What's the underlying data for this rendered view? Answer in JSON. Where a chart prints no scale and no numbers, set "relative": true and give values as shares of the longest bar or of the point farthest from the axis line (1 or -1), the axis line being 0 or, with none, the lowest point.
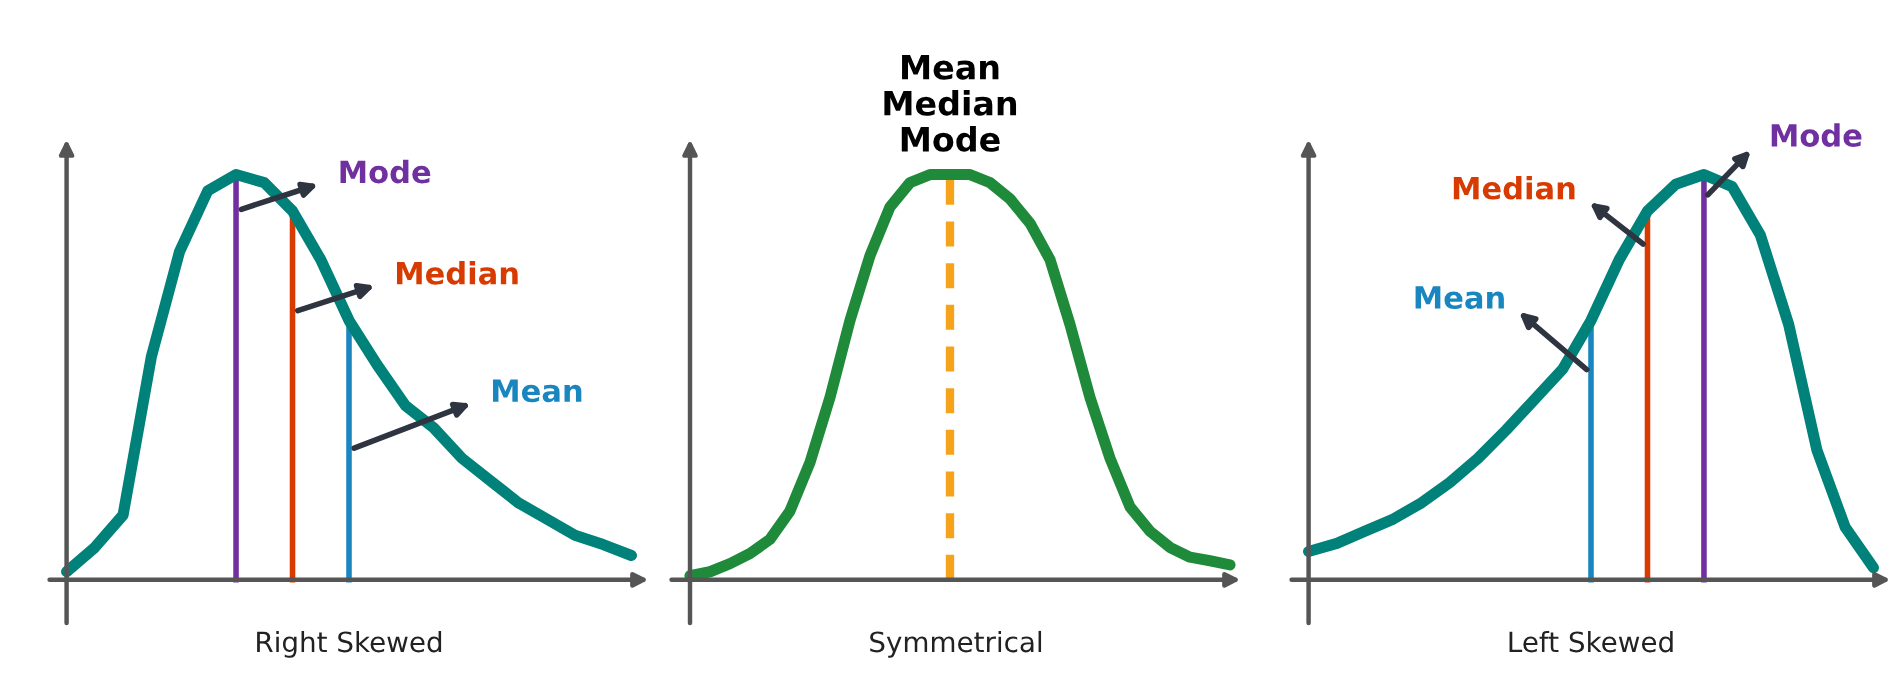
{
  "chart_data": [
    {
      "type": "line",
      "relative": true,
      "xlabel": "Right Skewed",
      "categories": [
        null,
        null,
        null,
        null,
        null,
        null,
        null,
        null,
        null,
        null,
        null,
        null,
        null,
        null,
        null,
        null,
        null,
        null,
        null,
        null,
        null
      ],
      "series": [
        {
          "color": "#00827a",
          "values": [
            0.02,
            0.08,
            0.16,
            0.55,
            0.81,
            0.96,
            1.0,
            0.98,
            0.91,
            0.79,
            0.64,
            0.53,
            0.43,
            0.375,
            0.3,
            0.245,
            0.19,
            0.15,
            0.11,
            0.087,
            0.06
          ]
        }
      ],
      "annotations": [
        "Mode",
        "Median",
        "Mean"
      ]
    },
    {
      "type": "line",
      "relative": true,
      "xlabel": "Symmetrical",
      "categories": [
        null,
        null,
        null,
        null,
        null,
        null,
        null,
        null,
        null,
        null,
        null,
        null,
        null,
        null,
        null,
        null,
        null,
        null,
        null,
        null,
        null,
        null,
        null,
        null,
        null,
        null,
        null,
        null
      ],
      "series": [
        {
          "color": "#1f8a3a",
          "values": [
            0.01,
            0.02,
            0.04,
            0.065,
            0.1,
            0.17,
            0.29,
            0.45,
            0.64,
            0.8,
            0.92,
            0.98,
            1.0,
            1.0,
            1.0,
            0.98,
            0.94,
            0.88,
            0.79,
            0.63,
            0.45,
            0.3,
            0.18,
            0.12,
            0.08,
            0.056,
            0.047,
            0.037
          ]
        }
      ],
      "annotations": [
        "Mean\nMedian\nMode"
      ]
    },
    {
      "type": "line",
      "relative": true,
      "xlabel": "Left Skewed",
      "categories": [
        null,
        null,
        null,
        null,
        null,
        null,
        null,
        null,
        null,
        null,
        null,
        null,
        null,
        null,
        null,
        null,
        null,
        null,
        null,
        null,
        null
      ],
      "series": [
        {
          "color": "#00827a",
          "values": [
            0.07,
            0.09,
            0.12,
            0.15,
            0.19,
            0.24,
            0.3,
            0.37,
            0.445,
            0.52,
            0.64,
            0.79,
            0.91,
            0.976,
            1.0,
            0.97,
            0.85,
            0.63,
            0.32,
            0.13,
            0.03
          ]
        }
      ],
      "annotations": [
        "Mean",
        "Median",
        "Mode"
      ]
    }
  ]
}
